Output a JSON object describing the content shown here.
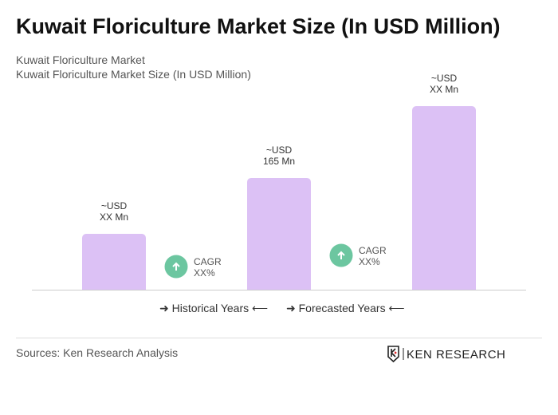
{
  "title": "Kuwait Floriculture Market Size (In USD Million)",
  "subtitle1": "Kuwait Floriculture Market",
  "subtitle2": "Kuwait Floriculture Market Size (In USD Million)",
  "chart_data": {
    "type": "bar",
    "categories": [
      "",
      "",
      ""
    ],
    "values": [
      82.5,
      165,
      271
    ],
    "data_labels": [
      [
        "~USD",
        "XX Mn"
      ],
      [
        "~USD",
        "165 Mn"
      ],
      [
        "~USD",
        "XX Mn"
      ]
    ],
    "bar_color": "#dcc1f5",
    "ylim": [
      0,
      280
    ],
    "grid": false,
    "cagr": [
      {
        "label": "CAGR",
        "value": "XX%"
      },
      {
        "label": "CAGR",
        "value": "XX%"
      }
    ],
    "cagr_color": "#6cc6a0"
  },
  "legend": {
    "historical": "Historical Years",
    "forecasted": "Forecasted Years"
  },
  "sources": "Sources: Ken Research Analysis",
  "logo_text": "KEN RESEARCH"
}
